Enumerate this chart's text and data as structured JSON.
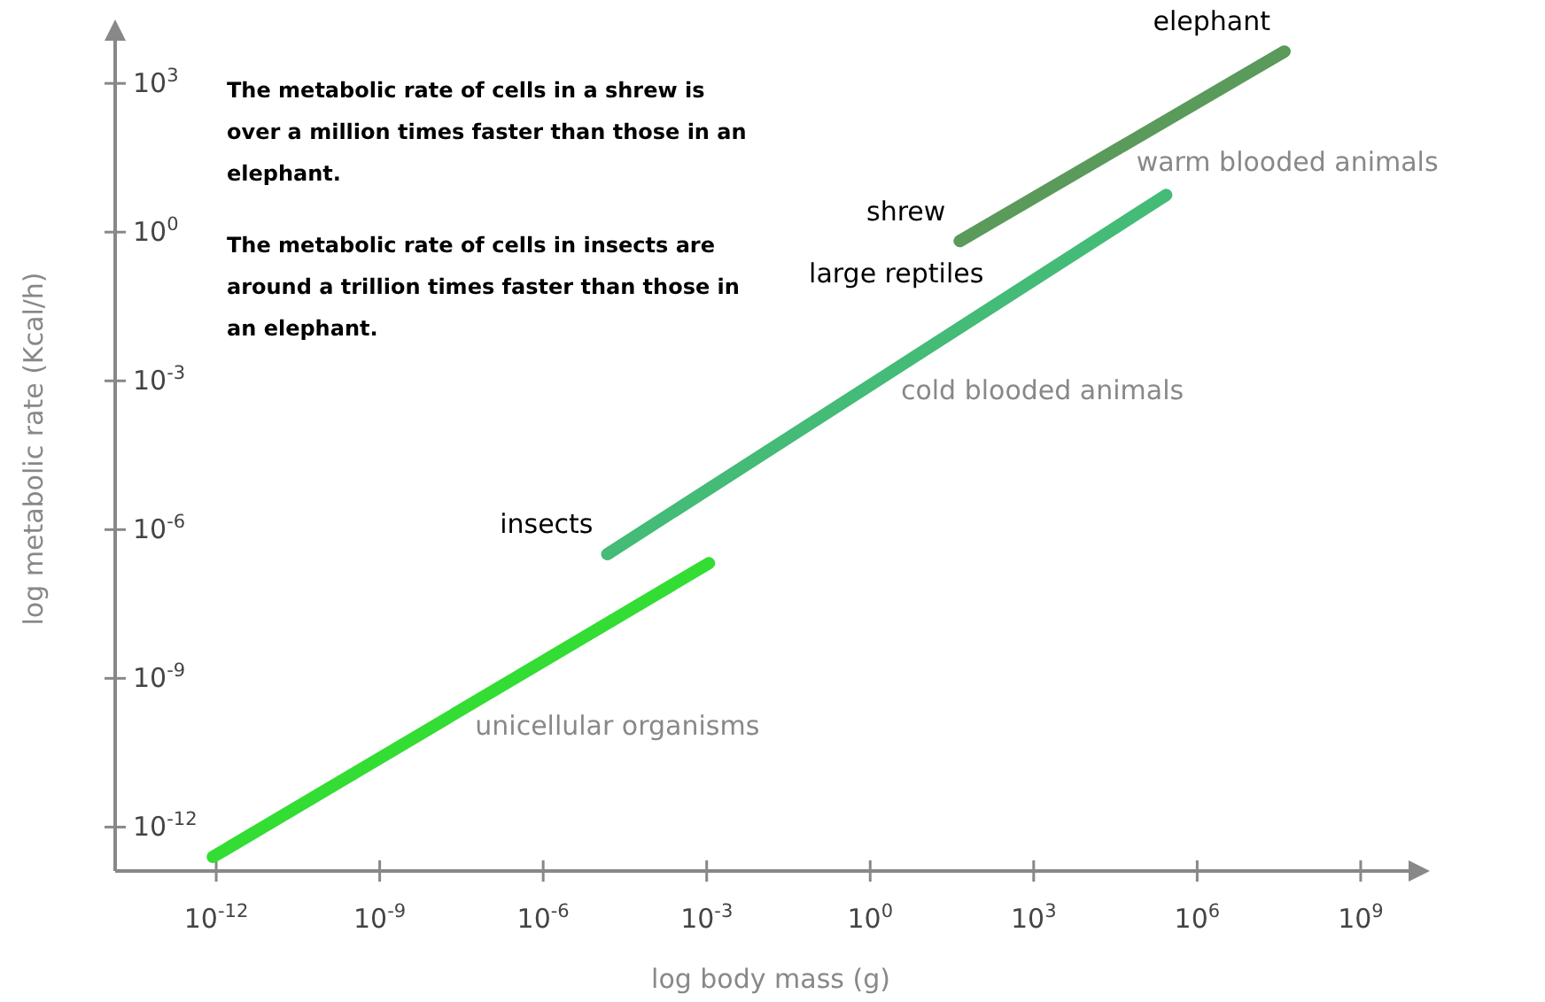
{
  "chart_data": {
    "type": "line",
    "log": "xy",
    "xlabel": "log body mass (g)",
    "ylabel": "log metabolic rate (Kcal/h)",
    "xlim": [
      1.4e-14,
      16000000000.0
    ],
    "ylim": [
      1.3e-13,
      14000.0
    ],
    "xticks": [
      {
        "value": 1e-12,
        "label": "10$^{-12}$"
      },
      {
        "value": 1e-09,
        "label": "10$^{-9}$"
      },
      {
        "value": 1e-06,
        "label": "10$^{-6}$"
      },
      {
        "value": 0.001,
        "label": "10$^{-3}$"
      },
      {
        "value": 1,
        "label": "10$^{0}$"
      },
      {
        "value": 1000.0,
        "label": "10$^{3}$"
      },
      {
        "value": 1000000.0,
        "label": "10$^{6}$"
      },
      {
        "value": 1000000000.0,
        "label": "10$^{9}$"
      }
    ],
    "yticks": [
      {
        "value": 1e-12,
        "label": "10$^{-12}$"
      },
      {
        "value": 1e-09,
        "label": "10$^{-9}$"
      },
      {
        "value": 1e-06,
        "label": "10$^{-6}$"
      },
      {
        "value": 0.001,
        "label": "10$^{-3}$"
      },
      {
        "value": 1,
        "label": "10$^{0}$"
      },
      {
        "value": 1000.0,
        "label": "10$^{3}$"
      }
    ],
    "grid": false,
    "marker": "none",
    "line_style": "solid",
    "series": [
      {
        "name": "unicellular organisms",
        "color": "#33dd33",
        "x": [
          8.7e-13,
          0.0011
        ],
        "values": [
          2.5e-13,
          2.1e-07
        ]
      },
      {
        "name": "cold blooded animals",
        "color": "#44bb77",
        "x": [
          1.5e-05,
          270000.0
        ],
        "values": [
          3.2e-07,
          5.6
        ]
      },
      {
        "name": "warm blooded animals",
        "color": "#5a9a5a",
        "x": [
          44,
          40000000.0
        ],
        "values": [
          0.66,
          4400
        ]
      }
    ],
    "annotations": [
      "The metabolic rate of cells in a shrew is over a million times faster than those in an elephant.",
      "The metabolic rate of cells in insects are around a trillion times faster than those in an elephant.",
      {
        "text": "elephant",
        "x": 40000000.0,
        "y": 4400
      },
      {
        "text": "shrew",
        "x": 44,
        "y": 0.66
      },
      {
        "text": "insects",
        "x": 1.5e-05,
        "y": 3.2e-07
      },
      {
        "text": "large reptiles",
        "x": 220,
        "y": 0.037
      }
    ]
  }
}
